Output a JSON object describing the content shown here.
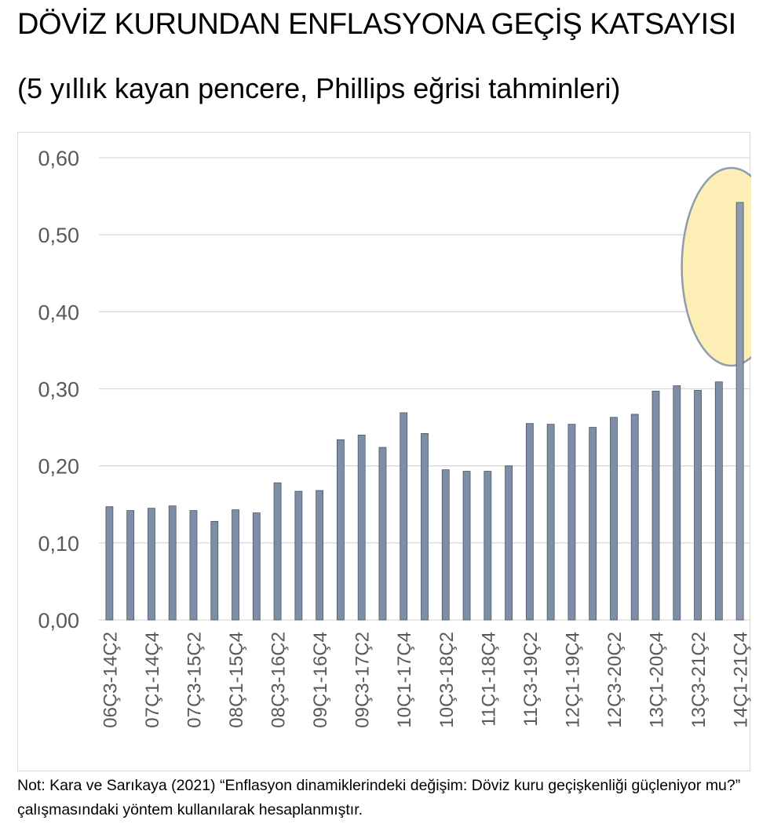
{
  "chart_data": {
    "type": "bar",
    "title": "DÖVİZ KURUNDAN ENFLASYONA GEÇİŞ KATSAYISI",
    "subtitle": "(5 yıllık kayan pencere, Phillips eğrisi tahminleri)",
    "xlabel": "",
    "ylabel": "",
    "ylim": [
      0,
      0.6
    ],
    "yticks": [
      "0,00",
      "0,10",
      "0,20",
      "0,30",
      "0,40",
      "0,50",
      "0,60"
    ],
    "grid": true,
    "categories": [
      "06Ç3-14Ç2",
      "",
      "07Ç1-14Ç4",
      "",
      "07Ç3-15Ç2",
      "",
      "08Ç1-15Ç4",
      "",
      "08Ç3-16Ç2",
      "",
      "09Ç1-16Ç4",
      "",
      "09Ç3-17Ç2",
      "",
      "10Ç1-17Ç4",
      "",
      "10Ç3-18Ç2",
      "",
      "11Ç1-18Ç4",
      "",
      "11Ç3-19Ç2",
      "",
      "12Ç1-19Ç4",
      "",
      "12Ç3-20Ç2",
      "",
      "13Ç1-20Ç4",
      "",
      "13Ç3-21Ç2",
      "",
      "14Ç1-21Ç4"
    ],
    "values": [
      0.147,
      0.142,
      0.145,
      0.148,
      0.142,
      0.128,
      0.143,
      0.139,
      0.178,
      0.167,
      0.168,
      0.234,
      0.24,
      0.224,
      0.269,
      0.242,
      0.195,
      0.193,
      0.193,
      0.2,
      0.255,
      0.254,
      0.254,
      0.25,
      0.263,
      0.267,
      0.297,
      0.304,
      0.298,
      0.309,
      0.542
    ],
    "bar_color": "#7e8ea6",
    "highlight": {
      "index": 30,
      "fill": "#fdeeb5",
      "stroke": "#8e9cb0"
    }
  },
  "note": "Not: Kara ve Sarıkaya (2021) “Enflasyon dinamiklerindeki değişim: Döviz kuru geçişkenliği güçleniyor mu?” çalışmasındaki yöntem kullanılarak hesaplanmıştır."
}
